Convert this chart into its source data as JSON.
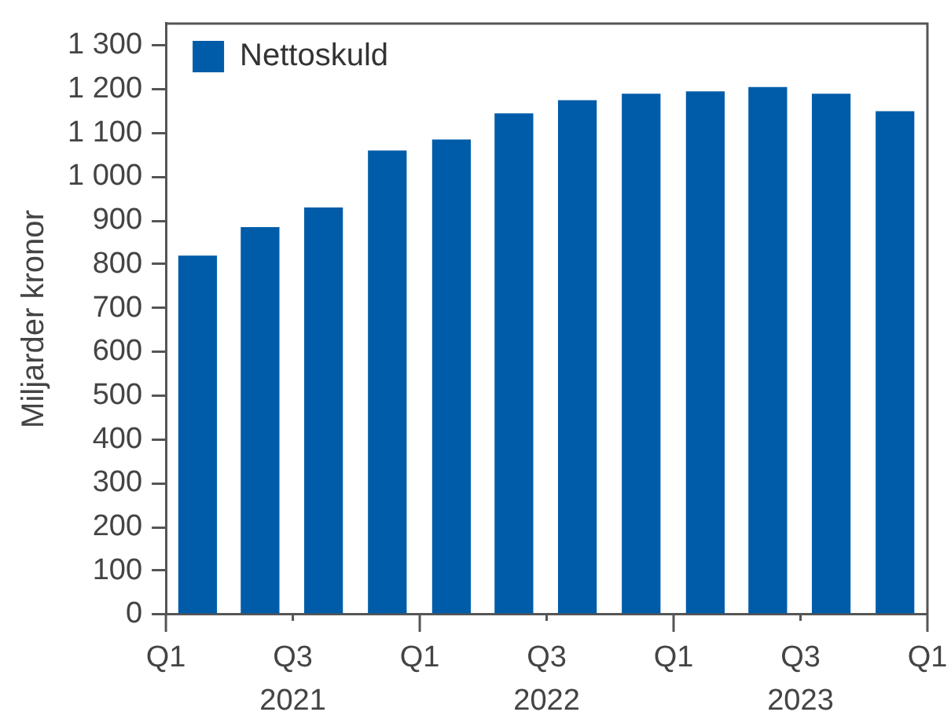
{
  "chart_data": {
    "type": "bar",
    "ylabel": "Miljarder kronor",
    "x": [
      "2021-02-15",
      "2021-05-15",
      "2021-08-15",
      "2021-11-15",
      "2022-02-15",
      "2022-05-15",
      "2022-08-15",
      "2022-11-15",
      "2023-02-15",
      "2023-05-15",
      "2023-08-15",
      "2023-11-15"
    ],
    "series": [
      {
        "name": "Nettoskuld",
        "color": "#005ca8",
        "values": [
          820,
          885,
          930,
          1060,
          1085,
          1145,
          1175,
          1190,
          1195,
          1205,
          1190,
          1150
        ]
      }
    ],
    "xlim": [
      "2021-01",
      "2024-01"
    ],
    "xticks": [
      {
        "value": "2021-01",
        "label": "Q1"
      },
      {
        "value": "2021-07",
        "label": "Q3\n2021"
      },
      {
        "value": "2022-01",
        "label": "Q1"
      },
      {
        "value": "2022-07",
        "label": "Q3\n2022"
      },
      {
        "value": "2023-01",
        "label": "Q1"
      },
      {
        "value": "2023-07",
        "label": "Q3\n2023"
      },
      {
        "value": "2024-01",
        "label": "Q1"
      }
    ],
    "ylim": [
      0,
      1350
    ],
    "yticks": [
      0,
      100,
      200,
      300,
      400,
      500,
      600,
      700,
      800,
      900,
      {
        "value": 1000,
        "label": "1 000"
      },
      {
        "value": 1100,
        "label": "1 100"
      },
      {
        "value": 1200,
        "label": "1 200"
      },
      {
        "value": 1300,
        "label": "1 300"
      }
    ],
    "legend": "top left"
  }
}
